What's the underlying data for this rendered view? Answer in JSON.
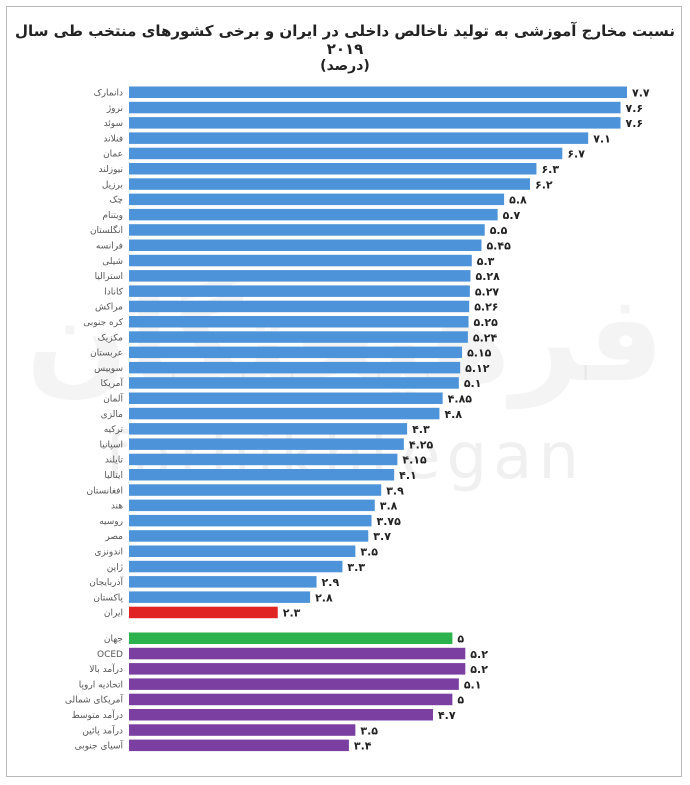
{
  "watermark": {
    "fa": "فرهیختگان",
    "en": "farhikhtegan"
  },
  "colors": {
    "countries": "#4d93d9",
    "iran": "#e02424",
    "world": "#2bb24c",
    "groups": "#7a3fa0"
  },
  "chart_data": {
    "type": "bar",
    "orientation": "horizontal",
    "title": "نسبت مخارج آموزشی به تولید ناخالص داخلی در ایران و برخی کشورهای منتخب طی سال ۲۰۱۹",
    "subtitle": "(درصد)",
    "xlim": [
      0,
      7.7
    ],
    "grid": false,
    "groups": [
      {
        "color_key": "countries",
        "bars": [
          {
            "label": "دانمارک",
            "value": 7.7,
            "value_label": "۷.۷"
          },
          {
            "label": "نروژ",
            "value": 7.6,
            "value_label": "۷.۶"
          },
          {
            "label": "سوئد",
            "value": 7.6,
            "value_label": "۷.۶"
          },
          {
            "label": "فنلاند",
            "value": 7.1,
            "value_label": "۷.۱"
          },
          {
            "label": "عمان",
            "value": 6.7,
            "value_label": "۶.۷"
          },
          {
            "label": "نیوزلند",
            "value": 6.3,
            "value_label": "۶.۳"
          },
          {
            "label": "برزیل",
            "value": 6.2,
            "value_label": "۶.۲"
          },
          {
            "label": "چک",
            "value": 5.8,
            "value_label": "۵.۸"
          },
          {
            "label": "ویتنام",
            "value": 5.7,
            "value_label": "۵.۷"
          },
          {
            "label": "انگلستان",
            "value": 5.5,
            "value_label": "۵.۵"
          },
          {
            "label": "فرانسه",
            "value": 5.45,
            "value_label": "۵.۴۵"
          },
          {
            "label": "شیلی",
            "value": 5.3,
            "value_label": "۵.۳"
          },
          {
            "label": "استرالیا",
            "value": 5.28,
            "value_label": "۵.۲۸"
          },
          {
            "label": "کانادا",
            "value": 5.27,
            "value_label": "۵.۲۷"
          },
          {
            "label": "مراکش",
            "value": 5.26,
            "value_label": "۵.۲۶"
          },
          {
            "label": "کره جنوبی",
            "value": 5.25,
            "value_label": "۵.۲۵"
          },
          {
            "label": "مکزیک",
            "value": 5.24,
            "value_label": "۵.۲۴"
          },
          {
            "label": "عربستان",
            "value": 5.15,
            "value_label": "۵.۱۵"
          },
          {
            "label": "سوییس",
            "value": 5.12,
            "value_label": "۵.۱۲"
          },
          {
            "label": "آمریکا",
            "value": 5.1,
            "value_label": "۵.۱"
          },
          {
            "label": "آلمان",
            "value": 4.85,
            "value_label": "۴.۸۵"
          },
          {
            "label": "مالزی",
            "value": 4.8,
            "value_label": "۴.۸"
          },
          {
            "label": "ترکیه",
            "value": 4.3,
            "value_label": "۴.۳"
          },
          {
            "label": "اسپانیا",
            "value": 4.25,
            "value_label": "۴.۲۵"
          },
          {
            "label": "تایلند",
            "value": 4.15,
            "value_label": "۴.۱۵"
          },
          {
            "label": "ایتالیا",
            "value": 4.1,
            "value_label": "۴.۱"
          },
          {
            "label": "افغانستان",
            "value": 3.9,
            "value_label": "۳.۹"
          },
          {
            "label": "هند",
            "value": 3.8,
            "value_label": "۳.۸"
          },
          {
            "label": "روسیه",
            "value": 3.75,
            "value_label": "۳.۷۵"
          },
          {
            "label": "مصر",
            "value": 3.7,
            "value_label": "۳.۷"
          },
          {
            "label": "اندونزی",
            "value": 3.5,
            "value_label": "۳.۵"
          },
          {
            "label": "ژاپن",
            "value": 3.3,
            "value_label": "۳.۳"
          },
          {
            "label": "آذربایجان",
            "value": 2.9,
            "value_label": "۲.۹"
          },
          {
            "label": "پاکستان",
            "value": 2.8,
            "value_label": "۲.۸"
          },
          {
            "label": "ایران",
            "value": 2.3,
            "value_label": "۲.۳",
            "color_key": "iran"
          }
        ]
      },
      {
        "color_key": "groups",
        "bars": [
          {
            "label": "جهان",
            "value": 5.0,
            "value_label": "۵",
            "color_key": "world"
          },
          {
            "label": "OCED",
            "value": 5.2,
            "value_label": "۵.۲"
          },
          {
            "label": "درآمد بالا",
            "value": 5.2,
            "value_label": "۵.۲"
          },
          {
            "label": "اتحادیه اروپا",
            "value": 5.1,
            "value_label": "۵.۱"
          },
          {
            "label": "آمریکای شمالی",
            "value": 5.0,
            "value_label": "۵"
          },
          {
            "label": "درآمد متوسط",
            "value": 4.7,
            "value_label": "۴.۷"
          },
          {
            "label": "درآمد پائین",
            "value": 3.5,
            "value_label": "۳.۵"
          },
          {
            "label": "آسیای جنوبی",
            "value": 3.4,
            "value_label": "۳.۴"
          }
        ]
      }
    ]
  }
}
